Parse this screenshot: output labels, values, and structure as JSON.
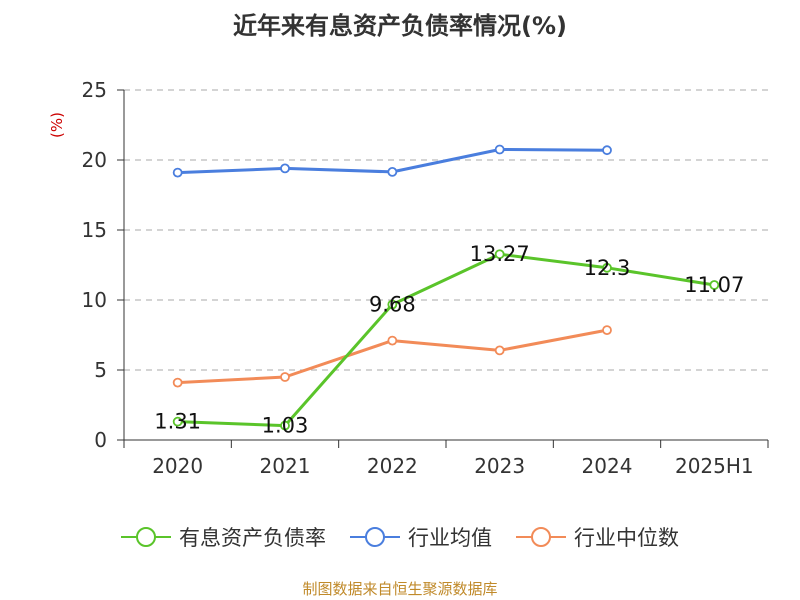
{
  "chart_data": {
    "type": "line",
    "title": "近年来有息资产负债率情况(%)",
    "ylabel": "(%)",
    "xlabel": "",
    "categories": [
      "2020",
      "2021",
      "2022",
      "2023",
      "2024",
      "2025H1"
    ],
    "ylim": [
      0,
      25
    ],
    "yticks": [
      "0",
      "5",
      "10",
      "15",
      "20",
      "25"
    ],
    "grid": true,
    "legend_position": "bottom",
    "series": [
      {
        "name": "有息资产负债率",
        "color": "#5ac42a",
        "values": [
          1.31,
          1.03,
          9.68,
          13.27,
          12.3,
          11.07
        ],
        "labels": [
          "1.31",
          "1.03",
          "9.68",
          "13.27",
          "12.3",
          "11.07"
        ]
      },
      {
        "name": "行业均值",
        "color": "#4a7ede",
        "values": [
          19.1,
          19.4,
          19.15,
          20.75,
          20.7,
          null
        ]
      },
      {
        "name": "行业中位数",
        "color": "#f28b58",
        "values": [
          4.1,
          4.5,
          7.1,
          6.4,
          7.85,
          null
        ]
      }
    ],
    "source": "制图数据来自恒生聚源数据库"
  }
}
